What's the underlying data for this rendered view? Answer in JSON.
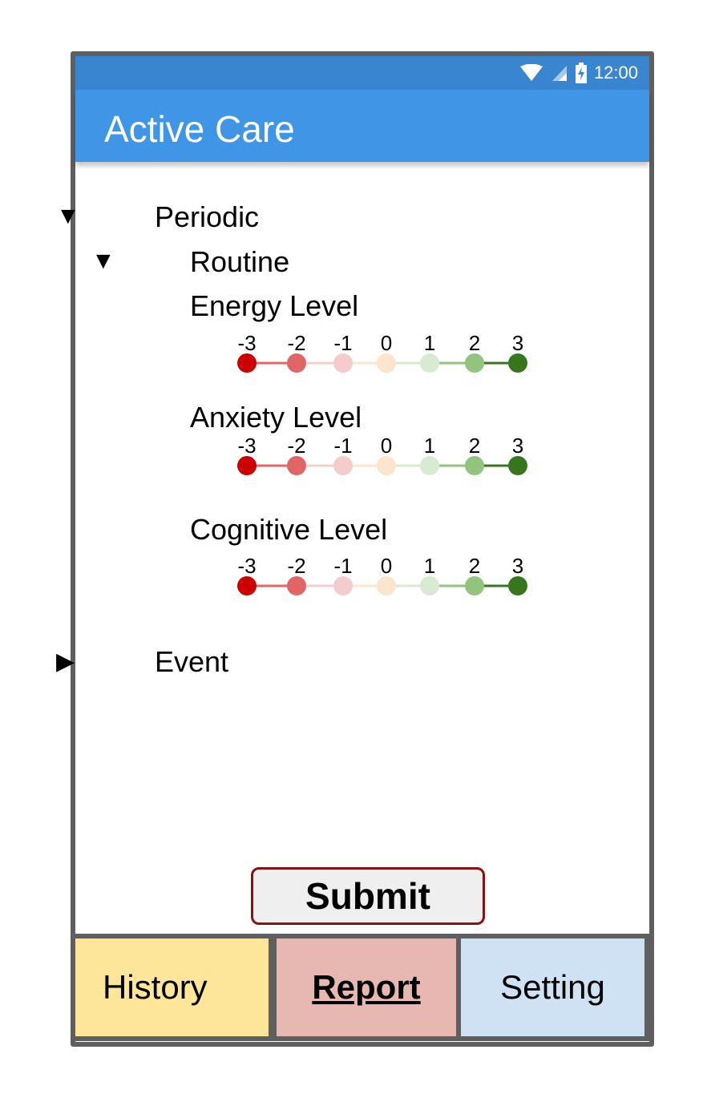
{
  "status_bar": {
    "time": "12:00",
    "icons": [
      "wifi-icon",
      "signal-icon",
      "battery-charging-icon"
    ]
  },
  "app_bar": {
    "title": "Active Care"
  },
  "tree": {
    "periodic": {
      "label": "Periodic",
      "caret": "▼"
    },
    "routine": {
      "label": "Routine",
      "caret": "▼"
    },
    "event": {
      "label": "Event",
      "caret": "▶"
    }
  },
  "scale_labels": [
    "-3",
    "-2",
    "-1",
    "0",
    "1",
    "2",
    "3"
  ],
  "scale_colors": [
    "#cc0000",
    "#e06666",
    "#f4cccc",
    "#fce5cd",
    "#d9ead3",
    "#93c47d",
    "#38761d"
  ],
  "metrics": [
    {
      "label": "Energy Level"
    },
    {
      "label": "Anxiety Level"
    },
    {
      "label": "Cognitive Level"
    }
  ],
  "submit_label": "Submit",
  "tabs": {
    "history": "History",
    "report": "Report",
    "setting": "Setting"
  },
  "colors": {
    "status_bar": "#3a85cf",
    "app_bar": "#3f95e6",
    "frame": "#5f5f5f",
    "submit_border": "#8b1111",
    "tab_history": "#fde59a",
    "tab_report": "#e7b8b1",
    "tab_setting": "#cfe2f3"
  }
}
